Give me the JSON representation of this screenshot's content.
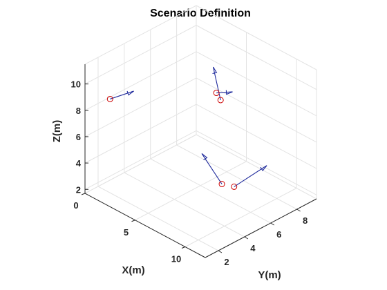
{
  "chart_data": {
    "type": "scatter3d-quiver",
    "title": "Scenario Definition",
    "xlabel": "X(m)",
    "ylabel": "Y(m)",
    "zlabel": "Z(m)",
    "xlim": [
      0,
      12
    ],
    "ylim": [
      1,
      9.5
    ],
    "zlim": [
      1.7,
      11.5
    ],
    "xticks": [
      0,
      5,
      10
    ],
    "yticks": [
      2,
      4,
      6,
      8
    ],
    "zticks": [
      2,
      4,
      6,
      8,
      10
    ],
    "grid": true,
    "marker_color": "#cc0000",
    "arrow_color": "#1f2a9c",
    "points": [
      {
        "x": 0.8,
        "y": 2.3,
        "z": 8.5,
        "u": 0.8,
        "v": 1.2,
        "w": 0.3
      },
      {
        "x": 7.0,
        "y": 6.0,
        "z": 9.0,
        "u": -1.0,
        "v": 0.2,
        "w": 2.0
      },
      {
        "x": 2.4,
        "y": 9.2,
        "z": 6.0,
        "u": 0.7,
        "v": 0.7,
        "w": 0.0
      },
      {
        "x": 10.0,
        "y": 3.8,
        "z": 5.0,
        "u": -2.0,
        "v": 0.0,
        "w": 1.5
      },
      {
        "x": 9.0,
        "y": 5.5,
        "z": 3.5,
        "u": 0.0,
        "v": 2.5,
        "w": 0.3
      }
    ]
  }
}
